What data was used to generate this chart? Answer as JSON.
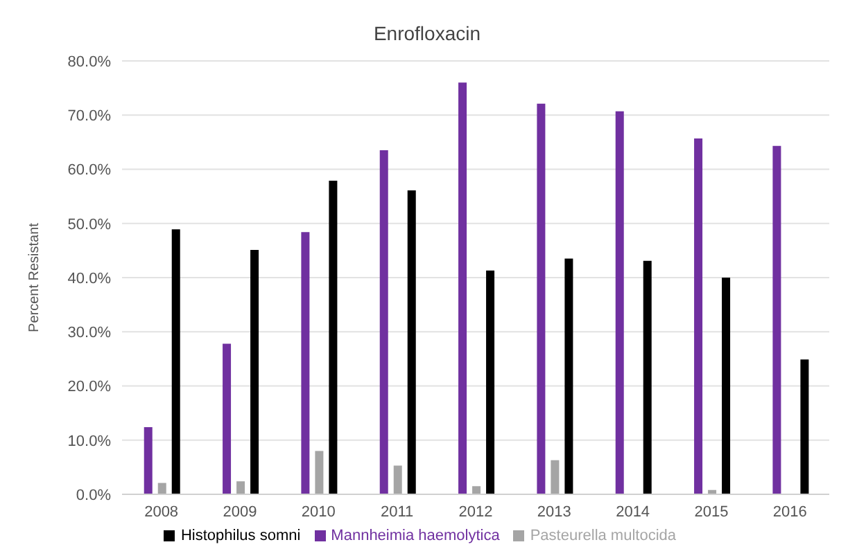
{
  "chart_data": {
    "type": "bar",
    "title": "Enrofloxacin",
    "ylabel": "Percent Resistant",
    "categories": [
      "2008",
      "2009",
      "2010",
      "2011",
      "2012",
      "2013",
      "2014",
      "2015",
      "2016"
    ],
    "series": [
      {
        "name": "Mannheimia haemolytica",
        "color": "#7030a0",
        "values": [
          12.4,
          27.8,
          48.4,
          63.5,
          76.0,
          72.1,
          70.7,
          65.7,
          64.3
        ]
      },
      {
        "name": "Pasteurella multocida",
        "color": "#a5a5a5",
        "values": [
          2.1,
          2.4,
          8.0,
          5.3,
          1.5,
          6.3,
          null,
          0.8,
          null
        ]
      },
      {
        "name": "Histophilus somni",
        "color": "#000000",
        "values": [
          48.9,
          45.1,
          57.9,
          56.1,
          41.3,
          43.5,
          43.1,
          40.0,
          24.9
        ]
      }
    ],
    "ylim": [
      0,
      80
    ],
    "yticks": [
      {
        "value": 0,
        "label": "0.0%"
      },
      {
        "value": 10,
        "label": "10.0%"
      },
      {
        "value": 20,
        "label": "20.0%"
      },
      {
        "value": 30,
        "label": "30.0%"
      },
      {
        "value": 40,
        "label": "40.0%"
      },
      {
        "value": 50,
        "label": "50.0%"
      },
      {
        "value": 60,
        "label": "60.0%"
      },
      {
        "value": 70,
        "label": "70.0%"
      },
      {
        "value": 80,
        "label": "80.0%"
      }
    ],
    "grid": "y",
    "legend": "bottom"
  }
}
